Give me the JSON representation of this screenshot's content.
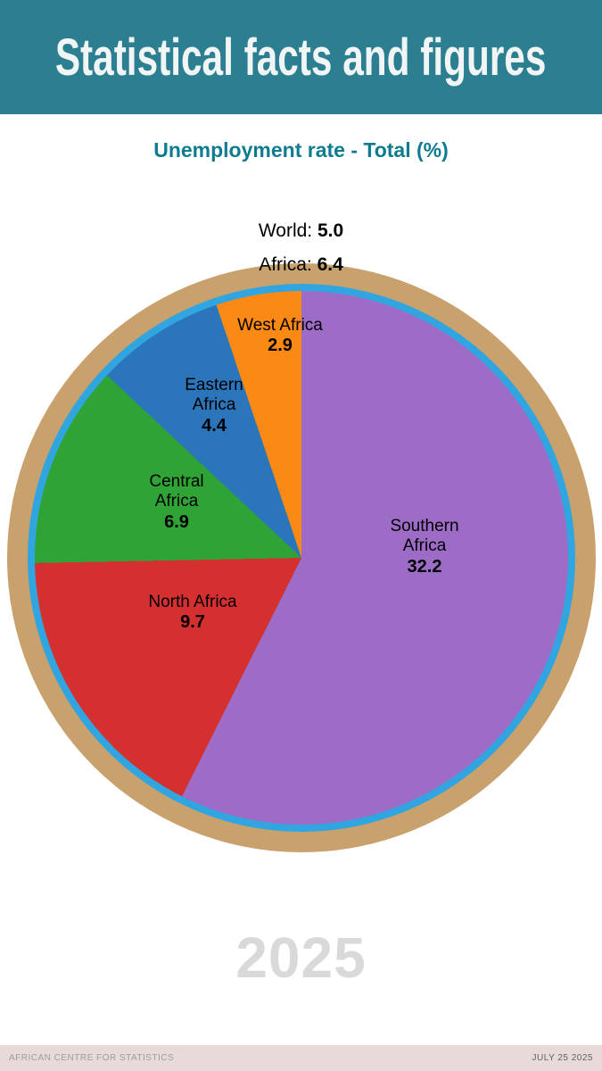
{
  "header": {
    "title": "Statistical facts and figures"
  },
  "chart_data": {
    "type": "pie",
    "title": "Unemployment rate - Total (%)",
    "unit": "%",
    "start_angle_deg": 0,
    "direction": "clockwise",
    "legend": "none",
    "annotations": {
      "world_label": "World:",
      "world_value": "5.0",
      "africa_label": "Africa:",
      "africa_value": "6.4"
    },
    "slices": [
      {
        "name": "Southern Africa",
        "value": 32.2,
        "color": "#9d6cc6"
      },
      {
        "name": "North Africa",
        "value": 9.7,
        "color": "#d53030"
      },
      {
        "name": "Central Africa",
        "value": 6.9,
        "color": "#30a337"
      },
      {
        "name": "Eastern Africa",
        "value": 4.4,
        "color": "#2b76ba"
      },
      {
        "name": "West Africa",
        "value": 2.9,
        "color": "#fb8a15"
      }
    ],
    "ring_colors": {
      "outer": "#c9a16d",
      "inner": "#31a5e0"
    }
  },
  "watermark": {
    "year": "2025"
  },
  "footer": {
    "left": "AFRICAN CENTRE FOR STATISTICS",
    "right": "JULY 25 2025"
  },
  "colors": {
    "header_bg": "#2c7f91",
    "title_teal": "#0e7b90",
    "footer_bg": "#e9dada",
    "watermark_gray": "#d9d9d9"
  }
}
